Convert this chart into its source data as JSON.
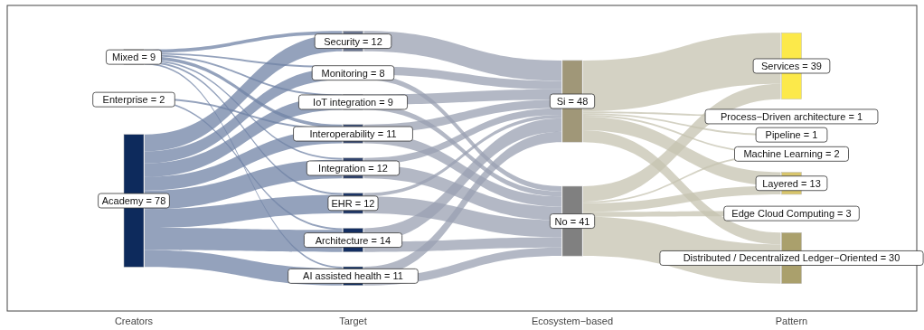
{
  "chart_data": [
    {
      "type": "other",
      "xlabel": "Creators",
      "categories": [
        "Mixed",
        "Enterprise",
        "Academy"
      ],
      "values": [
        9,
        2,
        78
      ],
      "value_labels": [
        "= 9",
        "= 2",
        "= 78"
      ]
    },
    {
      "type": "other",
      "xlabel": "Target",
      "categories": [
        "Security",
        "Monitoring",
        "IoT integration",
        "Interoperability",
        "Integration",
        "EHR",
        "Architecture",
        "AI assisted health"
      ],
      "values": [
        12,
        8,
        9,
        11,
        12,
        12,
        14,
        11
      ],
      "value_labels": [
        "= 12",
        "= 8",
        "= 9",
        "= 11",
        "= 12",
        "= 12",
        "= 14",
        "= 11"
      ]
    },
    {
      "type": "other",
      "xlabel": "Ecosystem−based",
      "categories": [
        "Si",
        "No"
      ],
      "values": [
        48,
        41
      ],
      "value_labels": [
        "= 48",
        "= 41"
      ]
    },
    {
      "type": "other",
      "xlabel": "Pattern",
      "categories": [
        "Services",
        "Process−Driven architecture",
        "Pipeline",
        "Machine Learning",
        "Layered",
        "Edge Cloud Computing",
        "Distributed / Decentralized Ledger−Oriented"
      ],
      "values": [
        39,
        1,
        1,
        2,
        13,
        3,
        30
      ],
      "value_labels": [
        "= 39",
        "= 1",
        "= 1",
        "= 2",
        "= 13",
        "= 3",
        "= 30"
      ]
    }
  ]
}
